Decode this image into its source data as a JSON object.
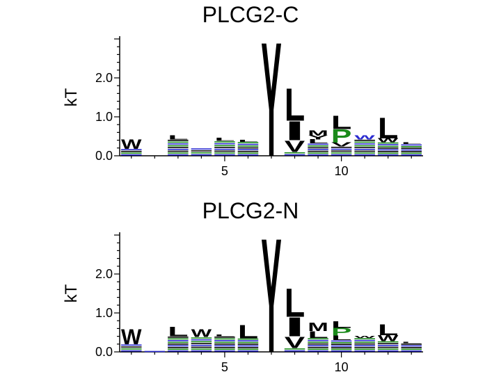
{
  "chart_data": [
    {
      "type": "sequence-logo",
      "title": "PLCG2-C",
      "ylabel": "kT",
      "ylim": [
        0,
        3.0
      ],
      "yticks": [
        {
          "value": 0.0,
          "label": "0.0"
        },
        {
          "value": 1.0,
          "label": "1.0"
        },
        {
          "value": 2.0,
          "label": "2.0"
        }
      ],
      "xlim": [
        0.5,
        13.5
      ],
      "xticks": [
        {
          "value": 5,
          "label": "5"
        },
        {
          "value": 10,
          "label": "10"
        }
      ],
      "positions": [
        {
          "pos": 1,
          "letters": [
            {
              "char": "W",
              "height": 0.25,
              "color": "#000000"
            }
          ],
          "noise": 0.18
        },
        {
          "pos": 2,
          "letters": [],
          "noise": 0.0
        },
        {
          "pos": 3,
          "letters": [
            {
              "char": "L",
              "height": 0.1,
              "color": "#000000"
            }
          ],
          "noise": 0.42
        },
        {
          "pos": 4,
          "letters": [],
          "noise": 0.2
        },
        {
          "pos": 5,
          "letters": [
            {
              "char": "L",
              "height": 0.08,
              "color": "#000000"
            }
          ],
          "noise": 0.38
        },
        {
          "pos": 6,
          "letters": [
            {
              "char": "L",
              "height": 0.06,
              "color": "#000000"
            }
          ],
          "noise": 0.36
        },
        {
          "pos": 7,
          "letters": [
            {
              "char": "Y",
              "height": 3.0,
              "color": "#000000"
            }
          ],
          "noise": 0.0
        },
        {
          "pos": 8,
          "letters": [
            {
              "char": "L",
              "height": 0.85,
              "color": "#000000"
            },
            {
              "char": "I",
              "height": 0.5,
              "color": "#000000"
            },
            {
              "char": "V",
              "height": 0.3,
              "color": "#000000"
            }
          ],
          "noise": 0.1
        },
        {
          "pos": 9,
          "letters": [
            {
              "char": "M",
              "height": 0.14,
              "color": "#000000"
            },
            {
              "char": "Y",
              "height": 0.1,
              "color": "#000000"
            },
            {
              "char": "L",
              "height": 0.1,
              "color": "#000000"
            }
          ],
          "noise": 0.32
        },
        {
          "pos": 10,
          "letters": [
            {
              "char": "L",
              "height": 0.35,
              "color": "#000000"
            },
            {
              "char": "P",
              "height": 0.35,
              "color": "#1a8a1a"
            },
            {
              "char": "V",
              "height": 0.1,
              "color": "#000000"
            }
          ],
          "noise": 0.24
        },
        {
          "pos": 11,
          "letters": [
            {
              "char": "W",
              "height": 0.1,
              "color": "#2a2ad0"
            }
          ],
          "noise": 0.42
        },
        {
          "pos": 12,
          "letters": [
            {
              "char": "L",
              "height": 0.55,
              "color": "#000000"
            },
            {
              "char": "W",
              "height": 0.1,
              "color": "#000000"
            }
          ],
          "noise": 0.35
        },
        {
          "pos": 13,
          "letters": [
            {
              "char": "L",
              "height": 0.05,
              "color": "#000000"
            }
          ],
          "noise": 0.3
        }
      ]
    },
    {
      "type": "sequence-logo",
      "title": "PLCG2-N",
      "ylabel": "kT",
      "ylim": [
        0,
        3.0
      ],
      "yticks": [
        {
          "value": 0.0,
          "label": "0.0"
        },
        {
          "value": 1.0,
          "label": "1.0"
        },
        {
          "value": 2.0,
          "label": "2.0"
        }
      ],
      "xlim": [
        0.5,
        13.5
      ],
      "xticks": [
        {
          "value": 5,
          "label": "5"
        },
        {
          "value": 10,
          "label": "10"
        }
      ],
      "positions": [
        {
          "pos": 1,
          "letters": [
            {
              "char": "W",
              "height": 0.4,
              "color": "#000000"
            }
          ],
          "noise": 0.2
        },
        {
          "pos": 2,
          "letters": [],
          "noise": 0.02
        },
        {
          "pos": 3,
          "letters": [
            {
              "char": "L",
              "height": 0.25,
              "color": "#000000"
            }
          ],
          "noise": 0.4
        },
        {
          "pos": 4,
          "letters": [
            {
              "char": "W",
              "height": 0.2,
              "color": "#000000"
            }
          ],
          "noise": 0.38
        },
        {
          "pos": 5,
          "letters": [
            {
              "char": "L",
              "height": 0.05,
              "color": "#000000"
            }
          ],
          "noise": 0.4
        },
        {
          "pos": 6,
          "letters": [
            {
              "char": "L",
              "height": 0.35,
              "color": "#000000"
            }
          ],
          "noise": 0.35
        },
        {
          "pos": 7,
          "letters": [
            {
              "char": "Y",
              "height": 3.0,
              "color": "#000000"
            }
          ],
          "noise": 0.0
        },
        {
          "pos": 8,
          "letters": [
            {
              "char": "L",
              "height": 0.75,
              "color": "#000000"
            },
            {
              "char": "I",
              "height": 0.5,
              "color": "#000000"
            },
            {
              "char": "V",
              "height": 0.3,
              "color": "#000000"
            }
          ],
          "noise": 0.1
        },
        {
          "pos": 9,
          "letters": [
            {
              "char": "M",
              "height": 0.22,
              "color": "#000000"
            },
            {
              "char": "L",
              "height": 0.18,
              "color": "#000000"
            }
          ],
          "noise": 0.36
        },
        {
          "pos": 10,
          "letters": [
            {
              "char": "L",
              "height": 0.18,
              "color": "#000000"
            },
            {
              "char": "P",
              "height": 0.2,
              "color": "#1a8a1a"
            },
            {
              "char": "L",
              "height": 0.12,
              "color": "#000000"
            }
          ],
          "noise": 0.3
        },
        {
          "pos": 11,
          "letters": [
            {
              "char": "W",
              "height": 0.06,
              "color": "#000000"
            }
          ],
          "noise": 0.36
        },
        {
          "pos": 12,
          "letters": [
            {
              "char": "L",
              "height": 0.28,
              "color": "#000000"
            },
            {
              "char": "W",
              "height": 0.15,
              "color": "#000000"
            }
          ],
          "noise": 0.28
        },
        {
          "pos": 13,
          "letters": [
            {
              "char": "L",
              "height": 0.03,
              "color": "#000000"
            }
          ],
          "noise": 0.22
        }
      ]
    }
  ],
  "colors": {
    "hydrophobic": "#000000",
    "proline": "#1a8a1a",
    "basic": "#2a2ad0",
    "acidic": "#d02020"
  }
}
